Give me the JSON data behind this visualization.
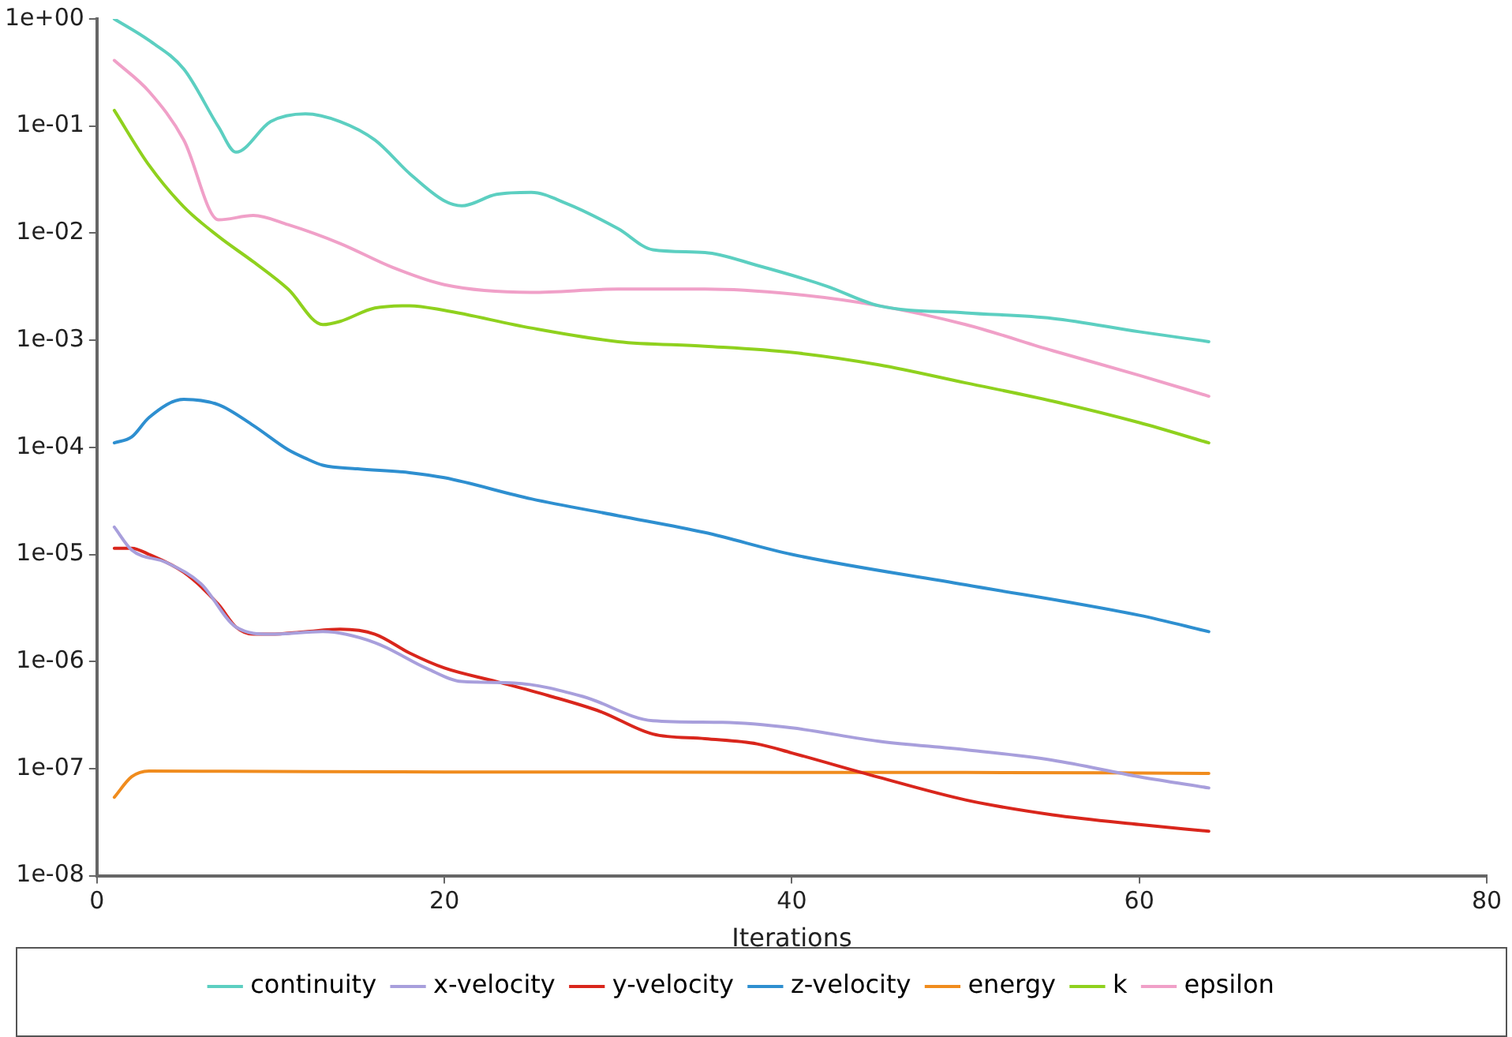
{
  "chart_data": {
    "type": "line",
    "xlabel": "Iterations",
    "log": "y",
    "grid": false,
    "legend": "bottom",
    "marker": "none",
    "line_style": "solid",
    "xlim": [
      0,
      80
    ],
    "xticks": [
      0,
      20,
      40,
      60,
      80
    ],
    "ylim": [
      1e-08,
      1
    ],
    "yticks": [
      {
        "value": 1,
        "label": "1e+00"
      },
      {
        "value": 0.1,
        "label": "1e-01"
      },
      {
        "value": 0.01,
        "label": "1e-02"
      },
      {
        "value": 0.001,
        "label": "1e-03"
      },
      {
        "value": 0.0001,
        "label": "1e-04"
      },
      {
        "value": 1e-05,
        "label": "1e-05"
      },
      {
        "value": 1e-06,
        "label": "1e-06"
      },
      {
        "value": 1e-07,
        "label": "1e-07"
      },
      {
        "value": 1e-08,
        "label": "1e-08"
      }
    ],
    "series": [
      {
        "name": "continuity",
        "color": "#5ccfc1",
        "x": [
          1,
          3,
          5,
          7,
          8,
          10,
          12,
          14,
          16,
          18,
          20,
          21,
          23,
          25,
          27,
          30,
          32,
          35,
          38,
          42,
          45,
          50,
          55,
          60,
          64
        ],
        "values": [
          1.0,
          0.63,
          0.34,
          0.098,
          0.057,
          0.11,
          0.13,
          0.11,
          0.074,
          0.036,
          0.02,
          0.018,
          0.023,
          0.024,
          0.019,
          0.011,
          0.007,
          0.0066,
          0.005,
          0.0032,
          0.0021,
          0.0018,
          0.0016,
          0.0012,
          0.00097
        ]
      },
      {
        "name": "x-velocity",
        "color": "#a89fdc",
        "x": [
          1,
          2,
          4,
          6,
          8,
          10,
          13,
          16,
          19,
          21,
          24,
          28,
          32,
          36,
          40,
          45,
          50,
          55,
          60,
          64
        ],
        "values": [
          1.8e-05,
          1.1e-05,
          8.4e-06,
          5.3e-06,
          2.1e-06,
          1.8e-06,
          1.9e-06,
          1.5e-06,
          8.6e-07,
          6.5e-07,
          6.3e-07,
          4.7e-07,
          2.8e-07,
          2.7e-07,
          2.4e-07,
          1.8e-07,
          1.5e-07,
          1.2e-07,
          8.4e-08,
          6.6e-08
        ]
      },
      {
        "name": "y-velocity",
        "color": "#d9261c",
        "x": [
          1,
          2,
          3,
          5,
          7,
          8,
          9,
          10,
          12,
          14,
          16,
          18,
          20,
          23,
          26,
          29,
          32,
          35,
          38,
          40,
          45,
          50,
          55,
          60,
          64
        ],
        "values": [
          1.14e-05,
          1.14e-05,
          1e-05,
          6.8e-06,
          3.4e-06,
          2.1e-06,
          1.8e-06,
          1.8e-06,
          1.9e-06,
          2e-06,
          1.8e-06,
          1.2e-06,
          8.7e-07,
          6.5e-07,
          4.8e-07,
          3.4e-07,
          2.1e-07,
          1.9e-07,
          1.7e-07,
          1.4e-07,
          8.3e-08,
          5.1e-08,
          3.7e-08,
          3e-08,
          2.6e-08
        ]
      },
      {
        "name": "z-velocity",
        "color": "#2e8fd0",
        "x": [
          1,
          2,
          3,
          5,
          7,
          9,
          11,
          12,
          13,
          15,
          18,
          20,
          25,
          30,
          35,
          40,
          50,
          60,
          64
        ],
        "values": [
          0.00011,
          0.000125,
          0.00019,
          0.00028,
          0.00025,
          0.00016,
          9.5e-05,
          7.9e-05,
          6.8e-05,
          6.3e-05,
          5.8e-05,
          5.2e-05,
          3.3e-05,
          2.3e-05,
          1.6e-05,
          1e-05,
          5.2e-06,
          2.7e-06,
          1.9e-06
        ]
      },
      {
        "name": "energy",
        "color": "#f08c1e",
        "x": [
          1,
          2,
          3,
          10,
          20,
          30,
          40,
          50,
          60,
          64
        ],
        "values": [
          5.4e-08,
          8.4e-08,
          9.5e-08,
          9.4e-08,
          9.3e-08,
          9.3e-08,
          9.2e-08,
          9.2e-08,
          9.1e-08,
          9e-08
        ]
      },
      {
        "name": "k",
        "color": "#8fd11e",
        "x": [
          1,
          3,
          5,
          7,
          9,
          11,
          13,
          14,
          16,
          18,
          20,
          25,
          30,
          35,
          40,
          45,
          50,
          55,
          60,
          64
        ],
        "values": [
          0.14,
          0.043,
          0.0176,
          0.0093,
          0.0054,
          0.003,
          0.0014,
          0.0015,
          0.002,
          0.0021,
          0.0019,
          0.0013,
          0.00097,
          0.00088,
          0.00077,
          0.00059,
          0.0004,
          0.00027,
          0.00017,
          0.00011
        ]
      },
      {
        "name": "epsilon",
        "color": "#f0a0c8",
        "x": [
          1,
          3,
          5,
          7,
          9,
          11,
          14,
          17,
          20,
          25,
          30,
          35,
          40,
          45,
          50,
          55,
          60,
          64
        ],
        "values": [
          0.41,
          0.21,
          0.074,
          0.0133,
          0.0146,
          0.012,
          0.008,
          0.0048,
          0.0033,
          0.0028,
          0.003,
          0.003,
          0.0027,
          0.0021,
          0.0014,
          0.0008,
          0.00047,
          0.0003
        ]
      }
    ]
  }
}
